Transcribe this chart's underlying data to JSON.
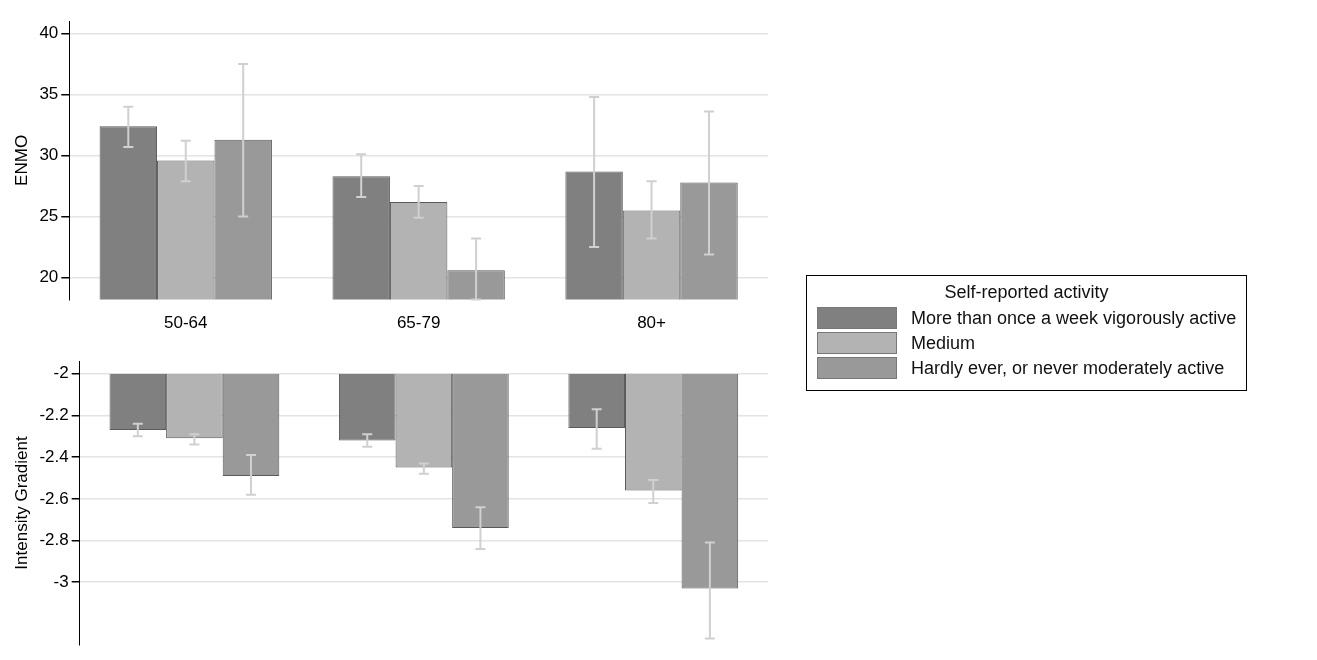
{
  "chart_data": [
    {
      "type": "bar",
      "ylabel": "ENMO",
      "categories": [
        "50-64",
        "65-79",
        "80+"
      ],
      "ylim": [
        18.2,
        41
      ],
      "yticks": [
        20,
        25,
        30,
        35,
        40
      ],
      "grid": "y",
      "legend": "right",
      "legend_title": "Self-reported activity",
      "series": [
        {
          "name": "More than once a week vigorously active",
          "color": "#808080",
          "values": [
            32.4,
            28.3,
            28.7
          ],
          "errors": [
            [
              30.7,
              34.0
            ],
            [
              26.6,
              30.1
            ],
            [
              22.5,
              34.8
            ]
          ]
        },
        {
          "name": "Medium",
          "color": "#b3b3b3",
          "values": [
            29.6,
            26.2,
            25.5
          ],
          "errors": [
            [
              27.9,
              31.2
            ],
            [
              24.9,
              27.5
            ],
            [
              23.2,
              27.9
            ]
          ]
        },
        {
          "name": "Hardly ever, or never moderately active",
          "color": "#999999",
          "values": [
            31.3,
            20.6,
            27.8
          ],
          "errors": [
            [
              25.0,
              37.5
            ],
            [
              18.2,
              23.2
            ],
            [
              21.9,
              33.6
            ]
          ]
        }
      ]
    },
    {
      "type": "bar",
      "ylabel": "Intensity Gradient",
      "categories": [
        null,
        null,
        null
      ],
      "ylim": [
        -3.3,
        -1.94
      ],
      "yticks": [
        -2,
        -2.2,
        -2.4,
        -2.6,
        -2.8,
        -3
      ],
      "grid": "y",
      "tick_labels": "y",
      "series": [
        {
          "color": "#808080",
          "base": [
            -2,
            -2,
            -2
          ],
          "values": [
            -0.27,
            -0.32,
            -0.26
          ],
          "errors": [
            [
              -2.3,
              -2.24
            ],
            [
              -2.35,
              -2.29
            ],
            [
              -2.36,
              -2.17
            ]
          ]
        },
        {
          "color": "#b3b3b3",
          "base": [
            -2,
            -2,
            -2
          ],
          "values": [
            -0.31,
            -0.45,
            -0.56
          ],
          "errors": [
            [
              -2.34,
              -2.29
            ],
            [
              -2.48,
              -2.43
            ],
            [
              -2.62,
              -2.51
            ]
          ]
        },
        {
          "color": "#999999",
          "base": [
            -2,
            -2,
            -2
          ],
          "values": [
            -0.49,
            -0.74,
            -1.03
          ],
          "errors": [
            [
              -2.58,
              -2.39
            ],
            [
              -2.84,
              -2.64
            ],
            [
              -3.27,
              -2.81
            ]
          ]
        }
      ]
    }
  ]
}
